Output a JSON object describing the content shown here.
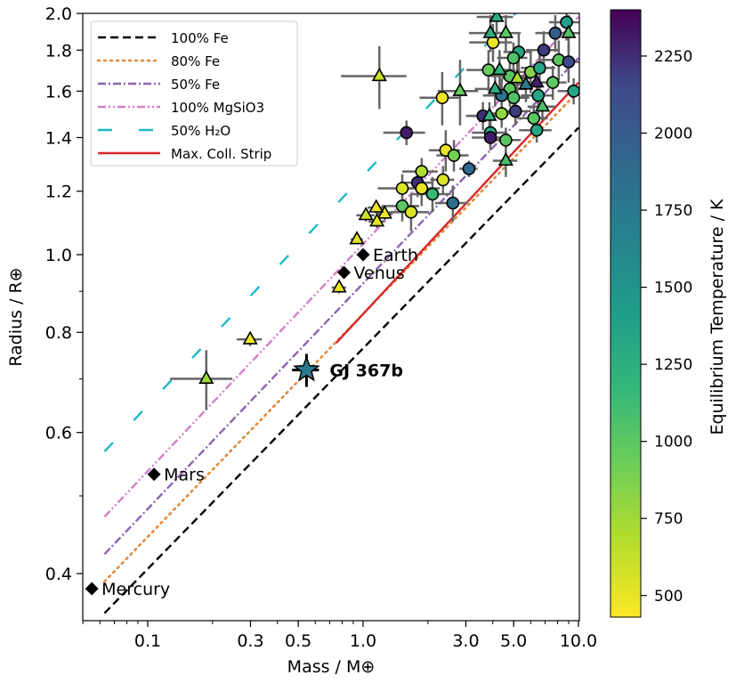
{
  "chart_data": {
    "type": "scatter",
    "title": "",
    "xlabel": "Mass / M⊕",
    "ylabel": "Radius / R⊕",
    "xscale": "log",
    "yscale": "log",
    "xlim": [
      0.05,
      10.0
    ],
    "ylim": [
      0.349,
      2.0
    ],
    "x_ticks": [
      0.1,
      0.3,
      0.5,
      1.0,
      3.0,
      5.0,
      10.0
    ],
    "x_tick_labels": [
      "0.1",
      "0.3",
      "0.5",
      "1.0",
      "3.0",
      "5.0",
      "10.0"
    ],
    "y_ticks": [
      0.4,
      0.6,
      0.8,
      1.0,
      1.2,
      1.4,
      1.6,
      1.8,
      2.0
    ],
    "y_tick_labels": [
      "0.4",
      "0.6",
      "0.8",
      "1.0",
      "1.2",
      "1.4",
      "1.6",
      "1.8",
      "2.0"
    ],
    "grid": false,
    "legend_position": "top-left",
    "legend": [
      {
        "label": "100% Fe",
        "color": "#000000",
        "style": "dashed"
      },
      {
        "label": "80% Fe",
        "color": "#e08a3c",
        "style": "dotted"
      },
      {
        "label": "50% Fe",
        "color": "#8c64b4",
        "style": "dashdot"
      },
      {
        "label": "100% MgSiO3",
        "color": "#d27fc8",
        "style": "dashdotdot"
      },
      {
        "label": "50% H₂O",
        "color": "#1fb9c8",
        "style": "longdash"
      },
      {
        "label": "Max. Coll. Strip",
        "color": "#d62728",
        "style": "solid"
      }
    ],
    "composition_lines": [
      {
        "name": "100% Fe",
        "points": [
          [
            0.063,
            0.357
          ],
          [
            10.0,
            1.44
          ]
        ]
      },
      {
        "name": "80% Fe",
        "points": [
          [
            0.063,
            0.391
          ],
          [
            10.0,
            1.6
          ]
        ]
      },
      {
        "name": "50% Fe",
        "points": [
          [
            0.063,
            0.423
          ],
          [
            10.0,
            1.76
          ]
        ]
      },
      {
        "name": "100% MgSiO3",
        "points": [
          [
            0.063,
            0.471
          ],
          [
            10.0,
            1.98
          ]
        ]
      },
      {
        "name": "50% H₂O",
        "points": [
          [
            0.063,
            0.568
          ],
          [
            5.1,
            2.0
          ]
        ]
      },
      {
        "name": "Max. Coll. Strip",
        "points": [
          [
            0.75,
            0.776
          ],
          [
            10.0,
            1.64
          ]
        ]
      }
    ],
    "colorbar": {
      "label": "Equilibrium Temperature / K",
      "vmin": 430,
      "vmax": 2400,
      "ticks": [
        500,
        750,
        1000,
        1250,
        1500,
        1750,
        2000,
        2250
      ],
      "tick_labels": [
        "500",
        "750",
        "1000",
        "1250",
        "1500",
        "1750",
        "2000",
        "2250"
      ],
      "colormap": "viridis"
    },
    "solar_system": [
      {
        "name": "Mercury",
        "mass": 0.055,
        "radius": 0.383
      },
      {
        "name": "Mars",
        "mass": 0.107,
        "radius": 0.532
      },
      {
        "name": "Venus",
        "mass": 0.815,
        "radius": 0.95
      },
      {
        "name": "Earth",
        "mass": 1.0,
        "radius": 1.0
      }
    ],
    "highlight": {
      "name": "GJ 367b",
      "mass": 0.546,
      "radius": 0.718,
      "mass_err": 0.078,
      "radius_err": 0.034,
      "temperature": 1745
    },
    "series": [
      {
        "name": "exoplanets-circle",
        "marker": "circle",
        "points": [
          {
            "mass": 2.33,
            "radius": 1.57,
            "mass_err": 0.5,
            "radius_err": 0.12,
            "teq": 480
          },
          {
            "mass": 1.59,
            "radius": 1.42,
            "mass_err": 0.35,
            "radius_err": 0.05,
            "teq": 2300
          },
          {
            "mass": 2.42,
            "radius": 1.35,
            "mass_err": 0.4,
            "radius_err": 0.08,
            "teq": 500
          },
          {
            "mass": 2.64,
            "radius": 1.33,
            "mass_err": 0.45,
            "radius_err": 0.06,
            "teq": 900
          },
          {
            "mass": 3.1,
            "radius": 1.28,
            "mass_err": 0.3,
            "radius_err": 0.03,
            "teq": 1900
          },
          {
            "mass": 1.87,
            "radius": 1.27,
            "mass_err": 0.35,
            "radius_err": 0.05,
            "teq": 700
          },
          {
            "mass": 1.79,
            "radius": 1.23,
            "mass_err": 0.3,
            "radius_err": 0.05,
            "teq": 2250
          },
          {
            "mass": 1.87,
            "radius": 1.21,
            "mass_err": 0.4,
            "radius_err": 0.06,
            "teq": 500
          },
          {
            "mass": 2.35,
            "radius": 1.24,
            "mass_err": 0.3,
            "radius_err": 0.05,
            "teq": 550
          },
          {
            "mass": 2.1,
            "radius": 1.19,
            "mass_err": 0.45,
            "radius_err": 0.06,
            "teq": 1150
          },
          {
            "mass": 1.52,
            "radius": 1.21,
            "mass_err": 0.35,
            "radius_err": 0.05,
            "teq": 550
          },
          {
            "mass": 1.52,
            "radius": 1.15,
            "mass_err": 0.3,
            "radius_err": 0.05,
            "teq": 1000
          },
          {
            "mass": 1.67,
            "radius": 1.13,
            "mass_err": 0.35,
            "radius_err": 0.06,
            "teq": 550
          },
          {
            "mass": 2.61,
            "radius": 1.16,
            "mass_err": 0.45,
            "radius_err": 0.06,
            "teq": 1850
          },
          {
            "mass": 4.01,
            "radius": 1.84,
            "mass_err": 0.9,
            "radius_err": 0.1,
            "teq": 480
          },
          {
            "mass": 5.28,
            "radius": 1.79,
            "mass_err": 0.8,
            "radius_err": 0.1,
            "teq": 1350
          },
          {
            "mass": 4.99,
            "radius": 1.76,
            "mass_err": 0.8,
            "radius_err": 0.08,
            "teq": 1050
          },
          {
            "mass": 6.9,
            "radius": 1.8,
            "mass_err": 1.2,
            "radius_err": 0.1,
            "teq": 2200
          },
          {
            "mass": 7.8,
            "radius": 1.89,
            "mass_err": 1.5,
            "radius_err": 0.1,
            "teq": 2000
          },
          {
            "mass": 8.8,
            "radius": 1.95,
            "mass_err": 1.5,
            "radius_err": 0.1,
            "teq": 1400
          },
          {
            "mass": 8.1,
            "radius": 1.75,
            "mass_err": 1.5,
            "radius_err": 0.1,
            "teq": 1000
          },
          {
            "mass": 9.0,
            "radius": 1.74,
            "mass_err": 1.5,
            "radius_err": 0.1,
            "teq": 2150
          },
          {
            "mass": 3.82,
            "radius": 1.7,
            "mass_err": 0.8,
            "radius_err": 0.1,
            "teq": 950
          },
          {
            "mass": 4.8,
            "radius": 1.67,
            "mass_err": 0.9,
            "radius_err": 0.1,
            "teq": 1000
          },
          {
            "mass": 6.0,
            "radius": 1.69,
            "mass_err": 1.0,
            "radius_err": 0.1,
            "teq": 850
          },
          {
            "mass": 6.6,
            "radius": 1.71,
            "mass_err": 1.2,
            "radius_err": 0.1,
            "teq": 1350
          },
          {
            "mass": 7.6,
            "radius": 1.64,
            "mass_err": 1.2,
            "radius_err": 0.08,
            "teq": 1000
          },
          {
            "mass": 4.8,
            "radius": 1.61,
            "mass_err": 0.9,
            "radius_err": 0.08,
            "teq": 1000
          },
          {
            "mass": 4.4,
            "radius": 1.58,
            "mass_err": 0.8,
            "radius_err": 0.08,
            "teq": 1800
          },
          {
            "mass": 5.0,
            "radius": 1.57,
            "mass_err": 0.9,
            "radius_err": 0.08,
            "teq": 1050
          },
          {
            "mass": 6.5,
            "radius": 1.58,
            "mass_err": 1.1,
            "radius_err": 0.08,
            "teq": 1350
          },
          {
            "mass": 9.5,
            "radius": 1.6,
            "mass_err": 1.5,
            "radius_err": 0.06,
            "teq": 1350
          },
          {
            "mass": 3.6,
            "radius": 1.49,
            "mass_err": 0.6,
            "radius_err": 0.06,
            "teq": 2250
          },
          {
            "mass": 4.4,
            "radius": 1.5,
            "mass_err": 0.8,
            "radius_err": 0.06,
            "teq": 800
          },
          {
            "mass": 5.1,
            "radius": 1.51,
            "mass_err": 0.9,
            "radius_err": 0.06,
            "teq": 2200
          },
          {
            "mass": 6.2,
            "radius": 1.48,
            "mass_err": 1.0,
            "radius_err": 0.06,
            "teq": 1000
          },
          {
            "mass": 3.9,
            "radius": 1.42,
            "mass_err": 0.7,
            "radius_err": 0.05,
            "teq": 1300
          },
          {
            "mass": 6.4,
            "radius": 1.43,
            "mass_err": 1.1,
            "radius_err": 0.05,
            "teq": 1350
          },
          {
            "mass": 4.6,
            "radius": 1.39,
            "mass_err": 0.8,
            "radius_err": 0.05,
            "teq": 1000
          },
          {
            "mass": 3.9,
            "radius": 1.4,
            "mass_err": 0.7,
            "radius_err": 0.05,
            "teq": 2300
          }
        ]
      },
      {
        "name": "exoplanets-triangle",
        "marker": "triangle",
        "points": [
          {
            "mass": 1.19,
            "radius": 1.67,
            "mass_err": 0.4,
            "radius_err": 0.15,
            "teq": 600
          },
          {
            "mass": 2.82,
            "radius": 1.6,
            "mass_err": 0.6,
            "radius_err": 0.15,
            "teq": 950
          },
          {
            "mass": 4.17,
            "radius": 1.98,
            "mass_err": 0.8,
            "radius_err": 0.1,
            "teq": 1300
          },
          {
            "mass": 3.9,
            "radius": 1.89,
            "mass_err": 0.8,
            "radius_err": 0.1,
            "teq": 1250
          },
          {
            "mass": 4.6,
            "radius": 1.89,
            "mass_err": 0.8,
            "radius_err": 0.1,
            "teq": 1000
          },
          {
            "mass": 4.3,
            "radius": 1.7,
            "mass_err": 0.8,
            "radius_err": 0.1,
            "teq": 1200
          },
          {
            "mass": 5.2,
            "radius": 1.66,
            "mass_err": 0.8,
            "radius_err": 0.08,
            "teq": 700
          },
          {
            "mass": 6.4,
            "radius": 1.64,
            "mass_err": 1.0,
            "radius_err": 0.08,
            "teq": 2300
          },
          {
            "mass": 5.7,
            "radius": 1.63,
            "mass_err": 1.0,
            "radius_err": 0.08,
            "teq": 1750
          },
          {
            "mass": 4.1,
            "radius": 1.61,
            "mass_err": 0.8,
            "radius_err": 0.08,
            "teq": 1250
          },
          {
            "mass": 3.86,
            "radius": 1.49,
            "mass_err": 0.7,
            "radius_err": 0.06,
            "teq": 1200
          },
          {
            "mass": 6.8,
            "radius": 1.53,
            "mass_err": 1.0,
            "radius_err": 0.06,
            "teq": 1050
          },
          {
            "mass": 4.6,
            "radius": 1.31,
            "mass_err": 0.6,
            "radius_err": 0.06,
            "teq": 1100
          },
          {
            "mass": 9.0,
            "radius": 1.89,
            "mass_err": 1.5,
            "radius_err": 0.1,
            "teq": 1050
          },
          {
            "mass": 1.26,
            "radius": 1.125,
            "mass_err": 0.1,
            "radius_err": 0.02,
            "teq": 500
          },
          {
            "mass": 1.15,
            "radius": 1.145,
            "mass_err": 0.1,
            "radius_err": 0.02,
            "teq": 480
          },
          {
            "mass": 1.03,
            "radius": 1.12,
            "mass_err": 0.1,
            "radius_err": 0.02,
            "teq": 600
          },
          {
            "mass": 1.16,
            "radius": 1.1,
            "mass_err": 0.1,
            "radius_err": 0.02,
            "teq": 520
          },
          {
            "mass": 0.936,
            "radius": 1.045,
            "mass_err": 0.06,
            "radius_err": 0.015,
            "teq": 540
          },
          {
            "mass": 0.774,
            "radius": 0.91,
            "mass_err": 0.06,
            "radius_err": 0.015,
            "teq": 470
          },
          {
            "mass": 0.299,
            "radius": 0.784,
            "mass_err": 0.04,
            "radius_err": 0.015,
            "teq": 490
          },
          {
            "mass": 0.187,
            "radius": 0.7,
            "mass_err": 0.06,
            "radius_err": 0.06,
            "teq": 760
          }
        ]
      }
    ]
  }
}
